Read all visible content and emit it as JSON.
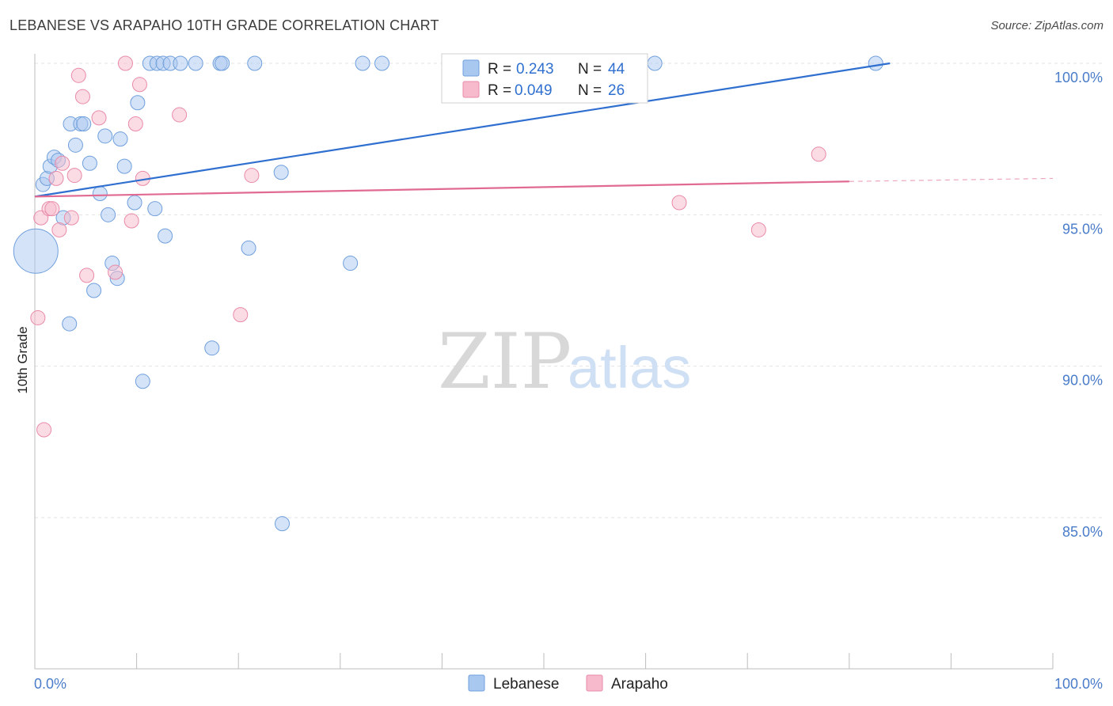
{
  "header": {
    "title": "LEBANESE VS ARAPAHO 10TH GRADE CORRELATION CHART",
    "source": "Source: ZipAtlas.com"
  },
  "watermark": {
    "zip": "ZIP",
    "atlas": "atlas"
  },
  "legend": {
    "items": [
      {
        "r_label": "R =",
        "r_value": "0.243",
        "n_label": "N =",
        "n_value": "44",
        "color": "#a9c8f0"
      },
      {
        "r_label": "R =",
        "r_value": "0.049",
        "n_label": "N =",
        "n_value": "26",
        "color": "#f7b9cc"
      }
    ]
  },
  "chart_data": {
    "type": "scatter",
    "title": "LEBANESE VS ARAPAHO 10TH GRADE CORRELATION CHART",
    "xlabel": "",
    "ylabel": "10th Grade",
    "xlim": [
      0,
      100
    ],
    "ylim": [
      80.5,
      100.7
    ],
    "x_tick_labels": [
      {
        "value": 0,
        "label": "0.0%"
      },
      {
        "value": 100,
        "label": "100.0%"
      }
    ],
    "y_tick_labels": [
      {
        "value": 100,
        "label": "100.0%"
      },
      {
        "value": 95,
        "label": "95.0%"
      },
      {
        "value": 90,
        "label": "90.0%"
      },
      {
        "value": 85,
        "label": "85.0%"
      }
    ],
    "series": [
      {
        "name": "Lebanese",
        "color": "#a9c8f0",
        "stroke": "#6f9fdc",
        "trend_color": "#2f6fcf",
        "trend": {
          "x0": 0,
          "y0": 95.6,
          "x1": 84,
          "y1": 100.0
        },
        "points": [
          [
            0.1,
            93.8,
            28
          ],
          [
            0.8,
            96.0,
            9
          ],
          [
            1.2,
            96.2,
            9
          ],
          [
            1.5,
            96.6,
            9
          ],
          [
            1.9,
            96.9,
            9
          ],
          [
            2.3,
            96.8,
            9
          ],
          [
            2.8,
            94.9,
            9
          ],
          [
            3.4,
            91.4,
            9
          ],
          [
            3.5,
            98.0,
            9
          ],
          [
            4.0,
            97.3,
            9
          ],
          [
            4.5,
            98.0,
            9
          ],
          [
            4.8,
            98.0,
            9
          ],
          [
            5.4,
            96.7,
            9
          ],
          [
            5.8,
            92.5,
            9
          ],
          [
            6.4,
            95.7,
            9
          ],
          [
            6.9,
            97.6,
            9
          ],
          [
            7.2,
            95.0,
            9
          ],
          [
            7.6,
            93.4,
            9
          ],
          [
            8.1,
            92.9,
            9
          ],
          [
            8.4,
            97.5,
            9
          ],
          [
            8.8,
            96.6,
            9
          ],
          [
            9.8,
            95.4,
            9
          ],
          [
            10.1,
            98.7,
            9
          ],
          [
            10.6,
            89.5,
            9
          ],
          [
            11.3,
            100.0,
            9
          ],
          [
            11.8,
            95.2,
            9
          ],
          [
            12.0,
            100.0,
            9
          ],
          [
            12.6,
            100.0,
            9
          ],
          [
            12.8,
            94.3,
            9
          ],
          [
            13.3,
            100.0,
            9
          ],
          [
            14.3,
            100.0,
            9
          ],
          [
            15.8,
            100.0,
            9
          ],
          [
            17.4,
            90.6,
            9
          ],
          [
            18.2,
            100.0,
            9
          ],
          [
            18.4,
            100.0,
            9
          ],
          [
            21.0,
            93.9,
            9
          ],
          [
            21.6,
            100.0,
            9
          ],
          [
            24.2,
            96.4,
            9
          ],
          [
            24.3,
            84.8,
            9
          ],
          [
            31.0,
            93.4,
            9
          ],
          [
            32.2,
            100.0,
            9
          ],
          [
            34.1,
            100.0,
            9
          ],
          [
            60.9,
            100.0,
            9
          ],
          [
            82.6,
            100.0,
            9
          ]
        ]
      },
      {
        "name": "Arapaho",
        "color": "#f7b9cc",
        "stroke": "#e98aa8",
        "trend_color": "#e06a92",
        "trend": {
          "x0": 0,
          "y0": 95.6,
          "x1": 80,
          "y1": 96.1
        },
        "trend_dashed": {
          "x0": 80,
          "y0": 96.1,
          "x1": 100,
          "y1": 96.2
        },
        "points": [
          [
            0.3,
            91.6,
            9
          ],
          [
            0.6,
            94.9,
            9
          ],
          [
            0.9,
            87.9,
            9
          ],
          [
            1.4,
            95.2,
            9
          ],
          [
            1.7,
            95.2,
            9
          ],
          [
            2.1,
            96.2,
            9
          ],
          [
            2.4,
            94.5,
            9
          ],
          [
            2.7,
            96.7,
            9
          ],
          [
            3.6,
            94.9,
            9
          ],
          [
            3.9,
            96.3,
            9
          ],
          [
            4.3,
            99.6,
            9
          ],
          [
            4.7,
            98.9,
            9
          ],
          [
            5.1,
            93.0,
            9
          ],
          [
            6.3,
            98.2,
            9
          ],
          [
            7.9,
            93.1,
            9
          ],
          [
            8.9,
            100.0,
            9
          ],
          [
            9.5,
            94.8,
            9
          ],
          [
            9.9,
            98.0,
            9
          ],
          [
            10.3,
            99.3,
            9
          ],
          [
            10.6,
            96.2,
            9
          ],
          [
            14.2,
            98.3,
            9
          ],
          [
            20.2,
            91.7,
            9
          ],
          [
            21.3,
            96.3,
            9
          ],
          [
            63.3,
            95.4,
            9
          ],
          [
            71.1,
            94.5,
            9
          ],
          [
            77.0,
            97.0,
            9
          ]
        ]
      }
    ],
    "grid": true,
    "legend_position": "top-center"
  },
  "bottom_legend": {
    "items": [
      {
        "label": "Lebanese",
        "color": "#a9c8f0"
      },
      {
        "label": "Arapaho",
        "color": "#f7b9cc"
      }
    ]
  }
}
